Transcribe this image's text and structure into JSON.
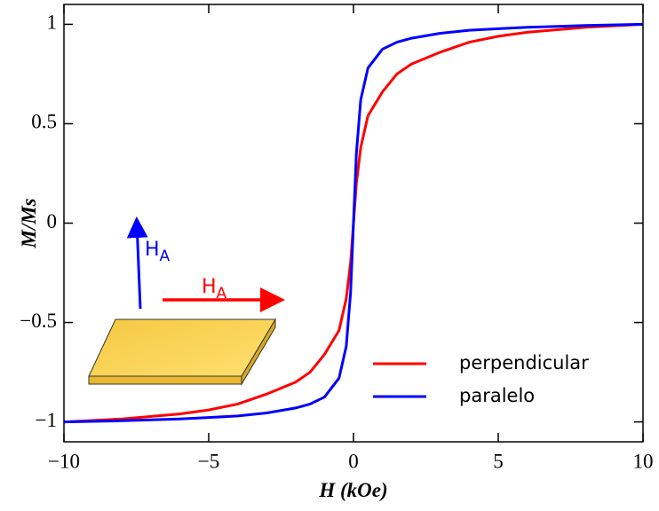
{
  "chart_data": {
    "type": "line",
    "x_label": "H (kOe)",
    "y_label": "M/Ms",
    "x": [
      -10,
      -8,
      -6,
      -5,
      -4,
      -3,
      -2,
      -1.5,
      -1,
      -0.5,
      -0.25,
      -0.1,
      0,
      0.1,
      0.25,
      0.5,
      1,
      1.5,
      2,
      3,
      4,
      5,
      6,
      8,
      10
    ],
    "series": [
      {
        "name": "perpendicular",
        "color": "#ff0000",
        "values": [
          -1,
          -0.985,
          -0.96,
          -0.94,
          -0.91,
          -0.86,
          -0.8,
          -0.75,
          -0.66,
          -0.54,
          -0.38,
          -0.2,
          0,
          0.2,
          0.38,
          0.54,
          0.66,
          0.75,
          0.8,
          0.86,
          0.91,
          0.94,
          0.96,
          0.985,
          1
        ]
      },
      {
        "name": "paralelo",
        "color": "#0000ff",
        "values": [
          -1,
          -0.994,
          -0.985,
          -0.978,
          -0.97,
          -0.955,
          -0.93,
          -0.91,
          -0.875,
          -0.78,
          -0.62,
          -0.35,
          0,
          0.35,
          0.62,
          0.78,
          0.875,
          0.91,
          0.93,
          0.955,
          0.97,
          0.978,
          0.985,
          0.994,
          1
        ]
      }
    ],
    "xlim": [
      -10,
      10
    ],
    "xticks": [
      {
        "value": -10,
        "label": "−10"
      },
      {
        "value": -5,
        "label": "−5"
      },
      0,
      5,
      10
    ],
    "ylim": [
      -1.1,
      1.1
    ],
    "yticks": [
      {
        "value": -1,
        "label": "−1"
      },
      {
        "value": -0.5,
        "label": "−0.5"
      },
      0,
      0.5,
      1
    ],
    "legend": "lower right",
    "annotations": [
      {
        "text": "H",
        "subscript": "A",
        "color": "#0000ff"
      },
      {
        "text": "H",
        "subscript": "A",
        "color": "#ff0000"
      }
    ]
  }
}
